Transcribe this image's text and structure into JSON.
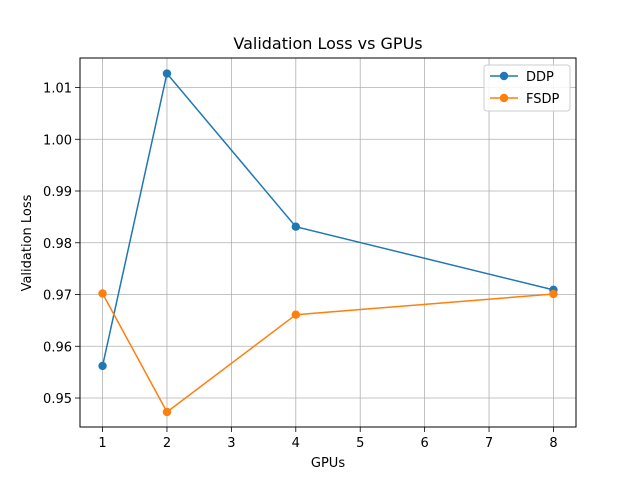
{
  "chart_data": {
    "type": "line",
    "title": "Validation Loss vs GPUs",
    "xlabel": "GPUs",
    "ylabel": "Validation Loss",
    "x": [
      1,
      2,
      4,
      8
    ],
    "xlim": [
      0.65,
      8.35
    ],
    "ylim": [
      0.9444,
      1.0157
    ],
    "xticks": [
      1,
      2,
      3,
      4,
      5,
      6,
      7,
      8
    ],
    "yticks": [
      0.95,
      0.96,
      0.97,
      0.98,
      0.99,
      1.0,
      1.01
    ],
    "ytick_labels": [
      "0.95",
      "0.96",
      "0.97",
      "0.98",
      "0.99",
      "1.00",
      "1.01"
    ],
    "grid": true,
    "legend_position": "top-right",
    "series": [
      {
        "name": "DDP",
        "color": "#1f77b4",
        "values": [
          0.9562,
          1.0127,
          0.9831,
          0.9709
        ]
      },
      {
        "name": "FSDP",
        "color": "#ff7f0e",
        "values": [
          0.9702,
          0.9473,
          0.9661,
          0.9701
        ]
      }
    ]
  }
}
